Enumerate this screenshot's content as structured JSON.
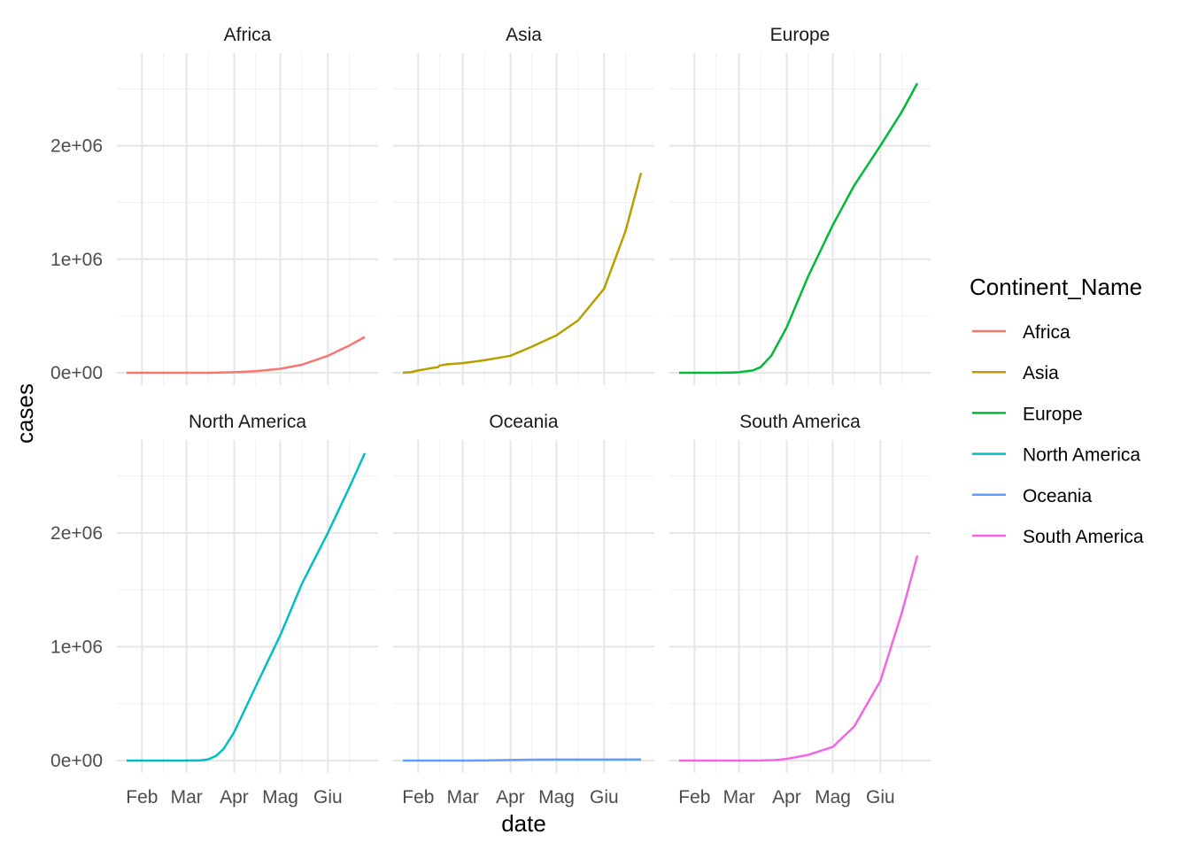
{
  "chart_data": {
    "type": "line",
    "layout": "facet_wrap",
    "xlabel": "date",
    "ylabel": "cases",
    "x": [
      "Feb",
      "Mar",
      "Apr",
      "Mag",
      "Giu"
    ],
    "x_range": [
      "2020-01-22",
      "2020-06-25"
    ],
    "ylim": [
      0,
      2800000
    ],
    "y_ticks": [
      0,
      1000000,
      2000000
    ],
    "y_tick_labels": [
      "0e+00",
      "1e+06",
      "2e+06"
    ],
    "grid": true,
    "legend": {
      "title": "Continent_Name",
      "position": "right"
    },
    "series": [
      {
        "name": "Africa",
        "color": "#F8766D",
        "points": [
          [
            "2020-01-22",
            0
          ],
          [
            "2020-02-15",
            0
          ],
          [
            "2020-03-15",
            300
          ],
          [
            "2020-04-01",
            5000
          ],
          [
            "2020-04-15",
            13000
          ],
          [
            "2020-05-01",
            35000
          ],
          [
            "2020-05-15",
            70000
          ],
          [
            "2020-06-01",
            150000
          ],
          [
            "2020-06-15",
            240000
          ],
          [
            "2020-06-25",
            315000
          ]
        ]
      },
      {
        "name": "Asia",
        "color": "#B79F00",
        "points": [
          [
            "2020-01-22",
            500
          ],
          [
            "2020-01-27",
            5000
          ],
          [
            "2020-02-01",
            20000
          ],
          [
            "2020-02-05",
            30000
          ],
          [
            "2020-02-10",
            42000
          ],
          [
            "2020-02-14",
            50000
          ],
          [
            "2020-02-15",
            64000
          ],
          [
            "2020-02-20",
            75000
          ],
          [
            "2020-03-01",
            85000
          ],
          [
            "2020-03-15",
            110000
          ],
          [
            "2020-04-01",
            150000
          ],
          [
            "2020-04-15",
            230000
          ],
          [
            "2020-05-01",
            330000
          ],
          [
            "2020-05-15",
            460000
          ],
          [
            "2020-06-01",
            740000
          ],
          [
            "2020-06-15",
            1250000
          ],
          [
            "2020-06-25",
            1760000
          ]
        ]
      },
      {
        "name": "Europe",
        "color": "#00BA38",
        "points": [
          [
            "2020-01-22",
            0
          ],
          [
            "2020-02-15",
            0
          ],
          [
            "2020-02-25",
            2000
          ],
          [
            "2020-03-01",
            5000
          ],
          [
            "2020-03-10",
            20000
          ],
          [
            "2020-03-15",
            50000
          ],
          [
            "2020-03-22",
            150000
          ],
          [
            "2020-04-01",
            400000
          ],
          [
            "2020-04-15",
            850000
          ],
          [
            "2020-05-01",
            1300000
          ],
          [
            "2020-05-15",
            1650000
          ],
          [
            "2020-06-01",
            2000000
          ],
          [
            "2020-06-15",
            2300000
          ],
          [
            "2020-06-25",
            2550000
          ]
        ]
      },
      {
        "name": "North America",
        "color": "#00BFC4",
        "points": [
          [
            "2020-01-22",
            0
          ],
          [
            "2020-03-01",
            100
          ],
          [
            "2020-03-10",
            2000
          ],
          [
            "2020-03-15",
            10000
          ],
          [
            "2020-03-20",
            40000
          ],
          [
            "2020-03-25",
            100000
          ],
          [
            "2020-04-01",
            250000
          ],
          [
            "2020-04-15",
            650000
          ],
          [
            "2020-05-01",
            1100000
          ],
          [
            "2020-05-15",
            1550000
          ],
          [
            "2020-06-01",
            2000000
          ],
          [
            "2020-06-15",
            2400000
          ],
          [
            "2020-06-25",
            2700000
          ]
        ]
      },
      {
        "name": "Oceania",
        "color": "#619CFF",
        "points": [
          [
            "2020-01-22",
            0
          ],
          [
            "2020-03-01",
            30
          ],
          [
            "2020-03-15",
            600
          ],
          [
            "2020-04-01",
            5000
          ],
          [
            "2020-04-15",
            7500
          ],
          [
            "2020-05-01",
            8200
          ],
          [
            "2020-06-01",
            8900
          ],
          [
            "2020-06-25",
            9500
          ]
        ]
      },
      {
        "name": "South America",
        "color": "#F564E3",
        "points": [
          [
            "2020-01-22",
            0
          ],
          [
            "2020-03-01",
            20
          ],
          [
            "2020-03-15",
            800
          ],
          [
            "2020-03-25",
            5000
          ],
          [
            "2020-04-01",
            15000
          ],
          [
            "2020-04-15",
            50000
          ],
          [
            "2020-05-01",
            120000
          ],
          [
            "2020-05-15",
            300000
          ],
          [
            "2020-06-01",
            700000
          ],
          [
            "2020-06-15",
            1300000
          ],
          [
            "2020-06-25",
            1800000
          ]
        ]
      }
    ]
  }
}
